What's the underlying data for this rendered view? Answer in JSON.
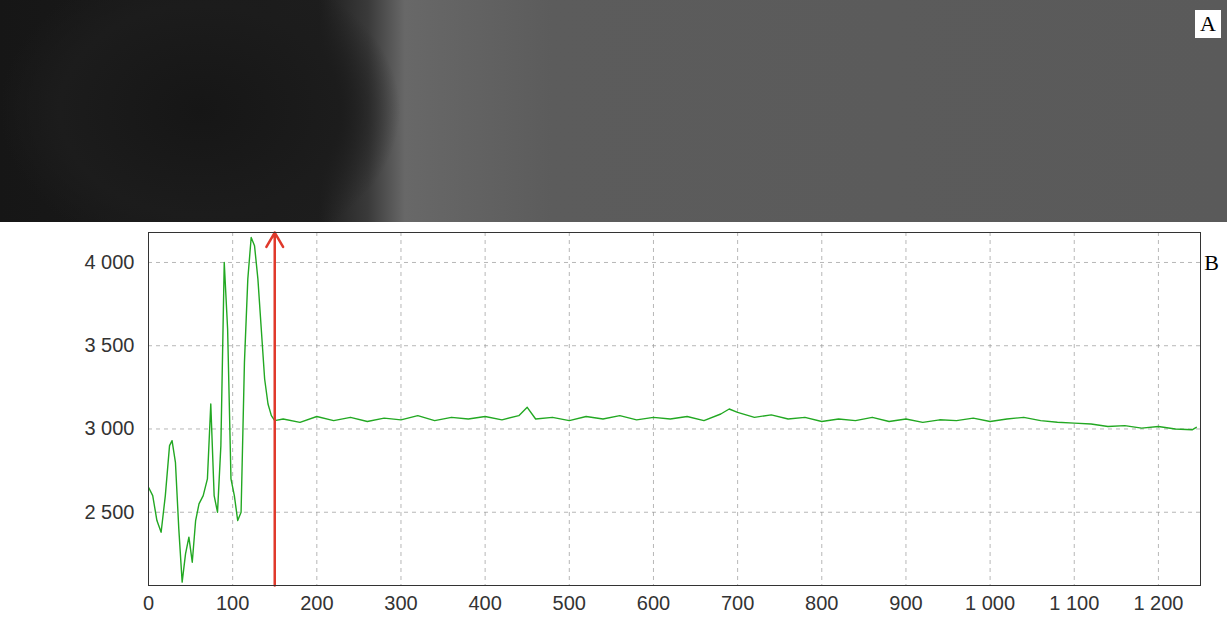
{
  "image_panel": {
    "label": "A"
  },
  "chart_data": {
    "type": "line",
    "panel_label": "B",
    "xlim": [
      0,
      1250
    ],
    "ylim": [
      2060,
      4180
    ],
    "xticks": [
      0,
      100,
      200,
      300,
      400,
      500,
      600,
      700,
      800,
      900,
      {
        "value": 1000,
        "label": "1 000"
      },
      {
        "value": 1100,
        "label": "1 100"
      },
      {
        "value": 1200,
        "label": "1 200"
      }
    ],
    "yticks": [
      {
        "value": 2500,
        "label": "2 500"
      },
      {
        "value": 3000,
        "label": "3 000"
      },
      {
        "value": 3500,
        "label": "3 500"
      },
      {
        "value": 4000,
        "label": "4 000"
      }
    ],
    "grid": true,
    "x": [
      0,
      5,
      10,
      15,
      20,
      25,
      28,
      32,
      36,
      40,
      44,
      48,
      52,
      56,
      60,
      65,
      70,
      74,
      78,
      82,
      86,
      90,
      94,
      98,
      102,
      106,
      110,
      114,
      118,
      122,
      126,
      130,
      134,
      138,
      142,
      146,
      150,
      160,
      180,
      200,
      220,
      240,
      260,
      280,
      300,
      320,
      340,
      360,
      380,
      400,
      420,
      440,
      450,
      460,
      480,
      500,
      520,
      540,
      560,
      580,
      600,
      620,
      640,
      660,
      680,
      690,
      700,
      720,
      740,
      760,
      780,
      800,
      820,
      840,
      860,
      880,
      900,
      920,
      940,
      960,
      980,
      1000,
      1020,
      1040,
      1060,
      1080,
      1100,
      1120,
      1140,
      1160,
      1180,
      1200,
      1220,
      1240,
      1245
    ],
    "series": [
      {
        "color": "#22a822",
        "values": [
          2650,
          2600,
          2450,
          2380,
          2600,
          2900,
          2930,
          2800,
          2400,
          2080,
          2250,
          2350,
          2200,
          2450,
          2550,
          2600,
          2700,
          3150,
          2600,
          2500,
          2900,
          4000,
          3600,
          2700,
          2600,
          2450,
          2500,
          3400,
          3900,
          4150,
          4100,
          3900,
          3600,
          3300,
          3150,
          3080,
          3050,
          3060,
          3040,
          3075,
          3050,
          3070,
          3045,
          3065,
          3055,
          3080,
          3050,
          3070,
          3060,
          3075,
          3055,
          3080,
          3130,
          3060,
          3070,
          3050,
          3075,
          3060,
          3080,
          3055,
          3070,
          3060,
          3075,
          3050,
          3090,
          3120,
          3100,
          3070,
          3085,
          3060,
          3070,
          3045,
          3060,
          3050,
          3070,
          3045,
          3060,
          3040,
          3055,
          3050,
          3065,
          3045,
          3060,
          3070,
          3050,
          3040,
          3035,
          3030,
          3015,
          3020,
          3005,
          3015,
          3000,
          2995,
          3010
        ]
      }
    ],
    "annotations": [
      {
        "type": "arrow",
        "x": 150,
        "color": "#e0392b"
      }
    ]
  }
}
